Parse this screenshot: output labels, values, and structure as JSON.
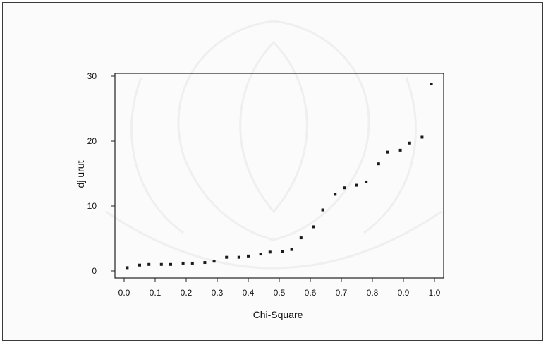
{
  "chart_data": {
    "type": "scatter",
    "title": "",
    "xlabel": "Chi-Square",
    "ylabel": "dj urut",
    "xlim": [
      0.0,
      1.0
    ],
    "ylim": [
      0,
      30
    ],
    "x_ticks": [
      "0.0",
      "0.1",
      "0.2",
      "0.3",
      "0.4",
      "0.5",
      "0.6",
      "0.7",
      "0.8",
      "0.9",
      "1.0"
    ],
    "y_ticks": [
      "0",
      "10",
      "20",
      "30"
    ],
    "grid": false,
    "legend": "none",
    "marker_color": "#1a1a1a",
    "points": [
      {
        "x": 0.01,
        "y": 0.5
      },
      {
        "x": 0.05,
        "y": 0.9
      },
      {
        "x": 0.08,
        "y": 1.0
      },
      {
        "x": 0.12,
        "y": 1.0
      },
      {
        "x": 0.15,
        "y": 1.0
      },
      {
        "x": 0.19,
        "y": 1.2
      },
      {
        "x": 0.22,
        "y": 1.2
      },
      {
        "x": 0.26,
        "y": 1.3
      },
      {
        "x": 0.29,
        "y": 1.5
      },
      {
        "x": 0.33,
        "y": 2.1
      },
      {
        "x": 0.37,
        "y": 2.1
      },
      {
        "x": 0.4,
        "y": 2.3
      },
      {
        "x": 0.44,
        "y": 2.6
      },
      {
        "x": 0.47,
        "y": 2.9
      },
      {
        "x": 0.51,
        "y": 3.0
      },
      {
        "x": 0.54,
        "y": 3.3
      },
      {
        "x": 0.57,
        "y": 5.1
      },
      {
        "x": 0.61,
        "y": 6.8
      },
      {
        "x": 0.64,
        "y": 9.4
      },
      {
        "x": 0.68,
        "y": 11.8
      },
      {
        "x": 0.71,
        "y": 12.8
      },
      {
        "x": 0.75,
        "y": 13.2
      },
      {
        "x": 0.78,
        "y": 13.7
      },
      {
        "x": 0.82,
        "y": 16.5
      },
      {
        "x": 0.85,
        "y": 18.3
      },
      {
        "x": 0.89,
        "y": 18.6
      },
      {
        "x": 0.92,
        "y": 19.7
      },
      {
        "x": 0.96,
        "y": 20.6
      },
      {
        "x": 0.99,
        "y": 28.8
      }
    ]
  }
}
